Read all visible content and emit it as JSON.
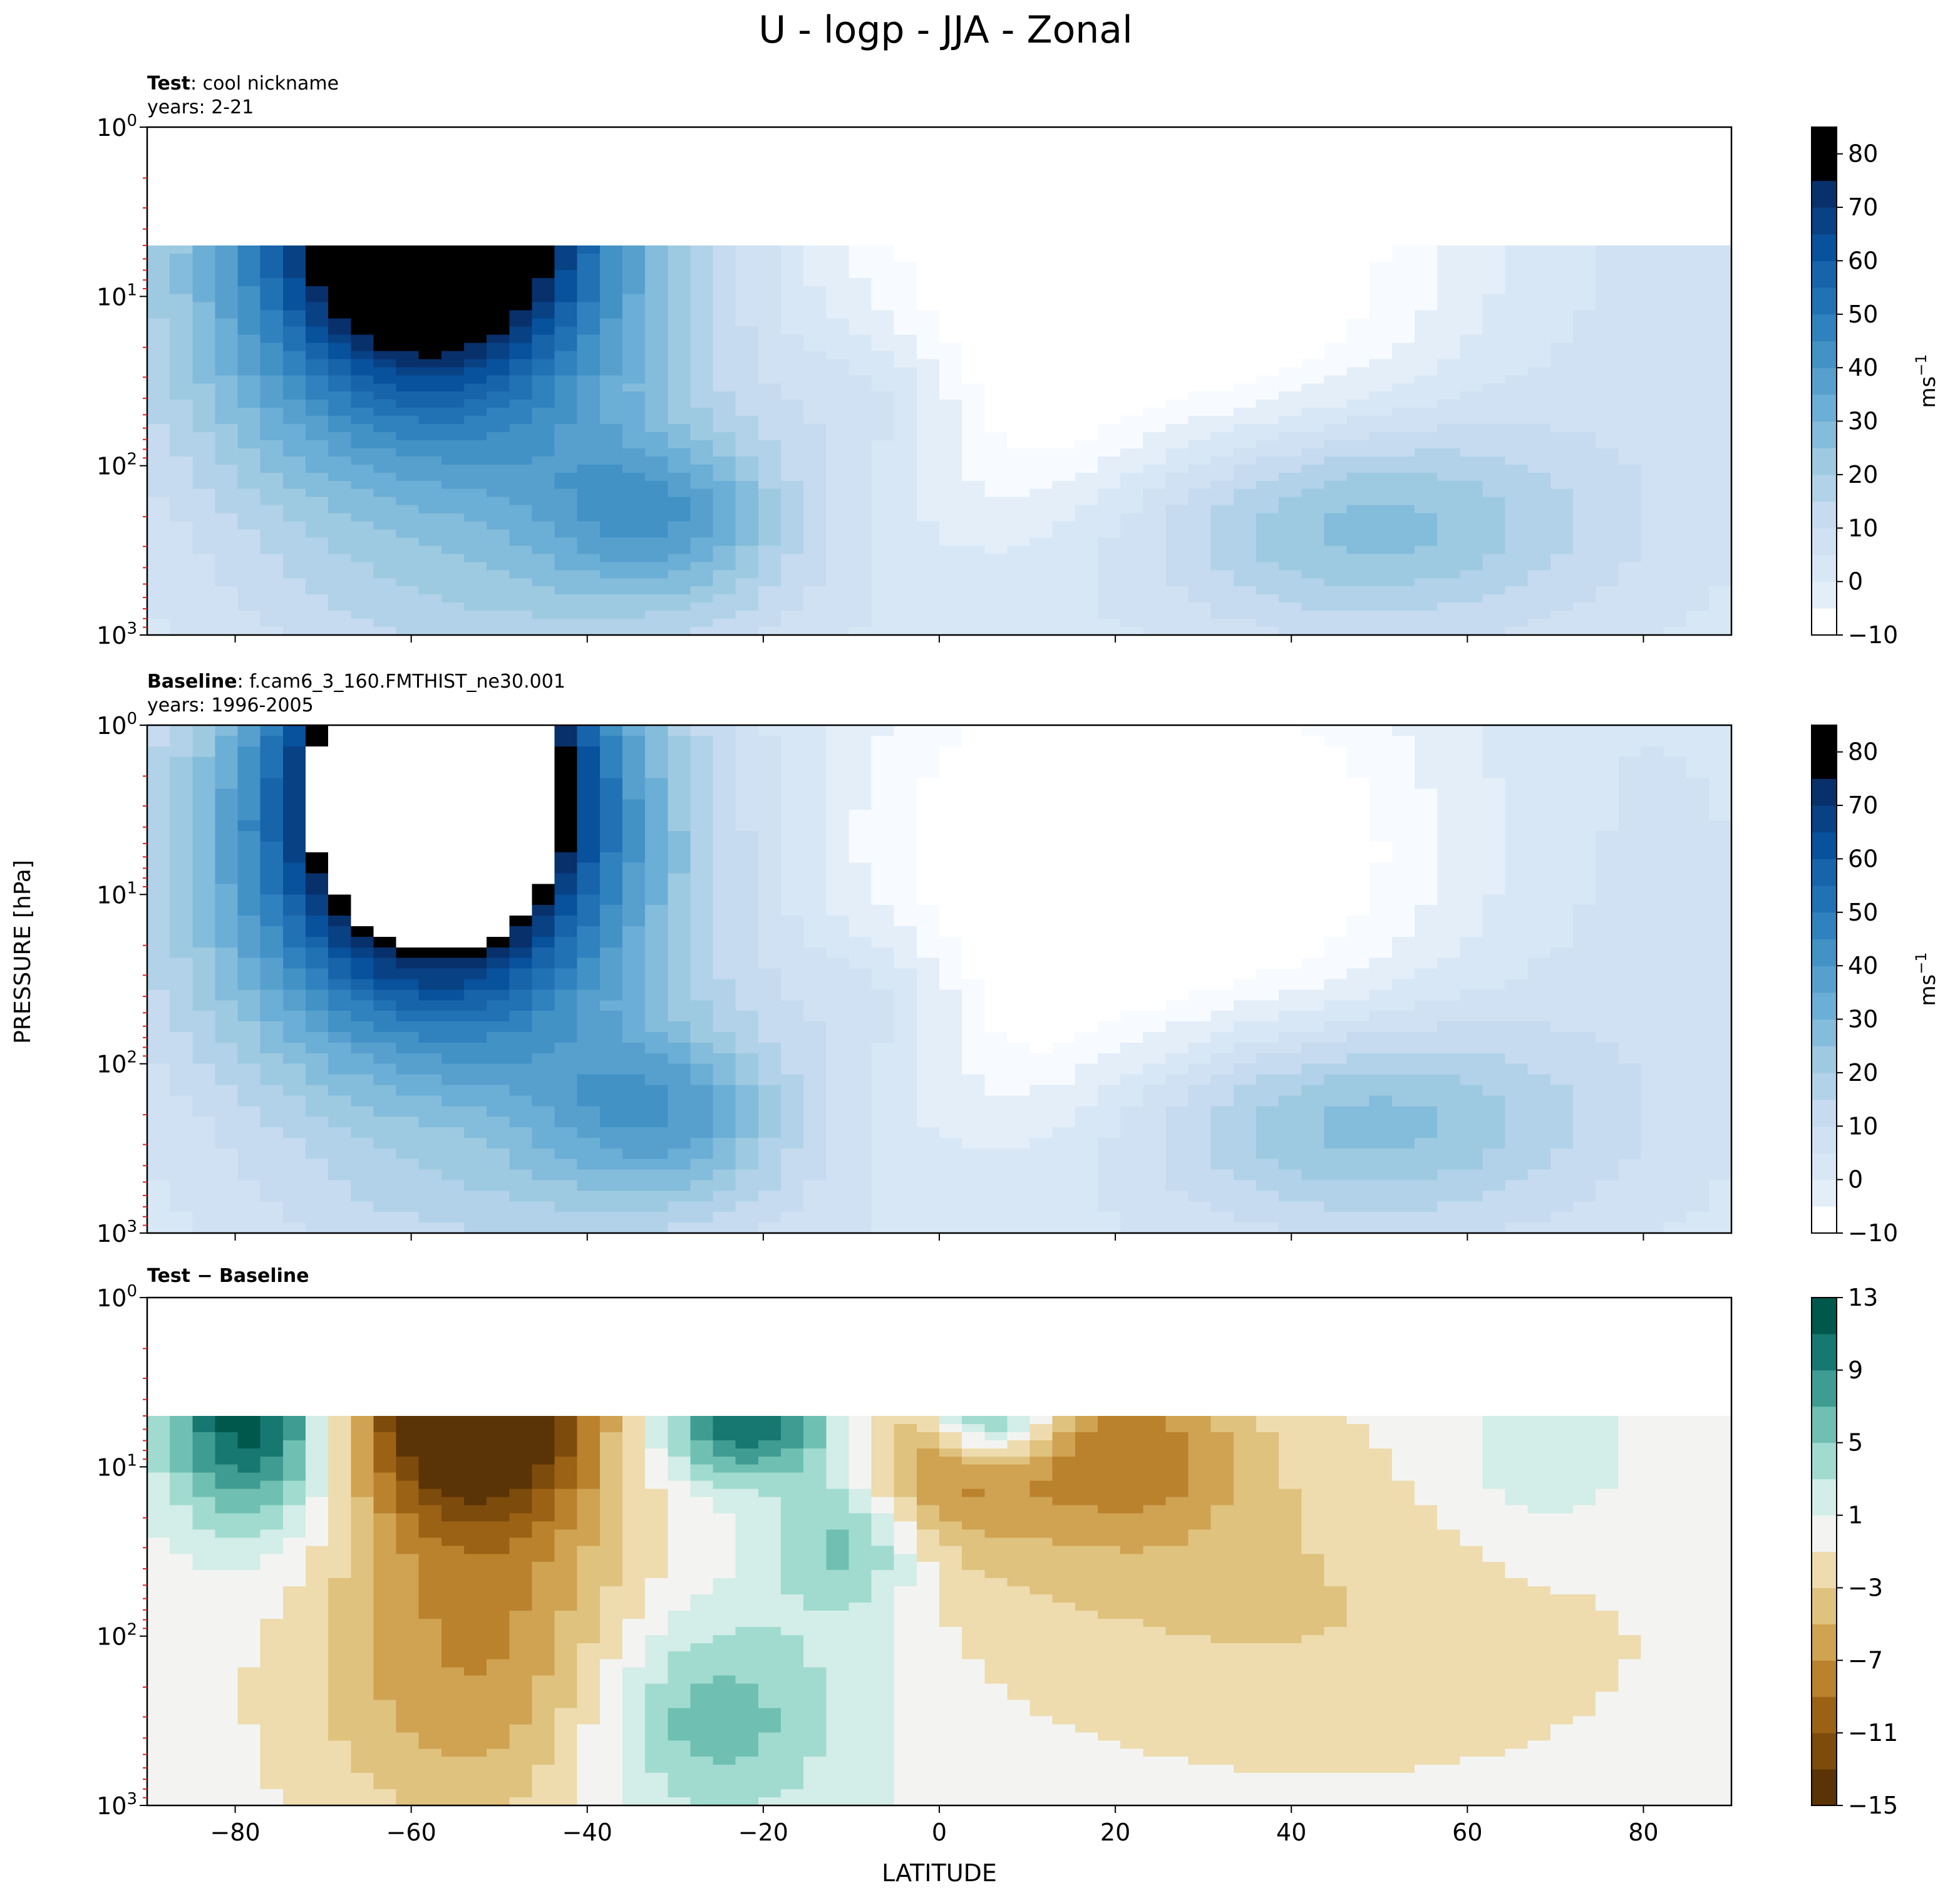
{
  "figure": {
    "title": "U - logp - JJA - Zonal",
    "ylabel": "PRESSURE [hPa]",
    "xlabel": "LATITUDE"
  },
  "chart_data": [
    {
      "type": "contour",
      "panel": "test",
      "label_bold": "Test",
      "label_rest": ": cool nickname",
      "years": "years: 2-21",
      "x": {
        "min": -90,
        "max": 90,
        "ticks": [
          -80,
          -60,
          -40,
          -20,
          0,
          20,
          40,
          60,
          80
        ]
      },
      "y": {
        "scale": "log",
        "min": 1,
        "max": 1000,
        "ticks": [
          "10",
          "10",
          "10",
          "10"
        ],
        "tick_exponents": [
          "0",
          "1",
          "2",
          "3"
        ],
        "inverted": true
      },
      "data_top_hpa": 5,
      "colorbar": {
        "levels": [
          -10,
          -5,
          0,
          5,
          10,
          15,
          20,
          25,
          30,
          35,
          40,
          45,
          50,
          55,
          60,
          65,
          70,
          75,
          80,
          85
        ],
        "tick_labels": [
          "80",
          "70",
          "60",
          "50",
          "40",
          "30",
          "20",
          "10",
          "0",
          "−10"
        ],
        "units": "ms",
        "units_exp": "−1"
      },
      "features": [
        {
          "name": "southern polar night jet",
          "lat": -58,
          "hpa": 5,
          "max": 75
        },
        {
          "name": "southern subtropical jet",
          "lat": -30,
          "hpa": 200,
          "max": 40
        },
        {
          "name": "northern subtropical jet",
          "lat": 47,
          "hpa": 200,
          "max": 25
        },
        {
          "name": "tropical upper westerly",
          "lat": -7,
          "hpa": 40,
          "max": 15
        }
      ]
    },
    {
      "type": "contour",
      "panel": "baseline",
      "label_bold": "Baseline",
      "label_rest": ": f.cam6_3_160.FMTHIST_ne30.001",
      "years": "years: 1996-2005",
      "x": {
        "min": -90,
        "max": 90,
        "ticks": [
          -80,
          -60,
          -40,
          -20,
          0,
          20,
          40,
          60,
          80
        ]
      },
      "y": {
        "scale": "log",
        "min": 1,
        "max": 1000,
        "ticks": [
          "10",
          "10",
          "10",
          "10"
        ],
        "tick_exponents": [
          "0",
          "1",
          "2",
          "3"
        ],
        "inverted": true
      },
      "data_top_hpa": 1,
      "colorbar": {
        "levels": [
          -10,
          -5,
          0,
          5,
          10,
          15,
          20,
          25,
          30,
          35,
          40,
          45,
          50,
          55,
          60,
          65,
          70,
          75,
          80,
          85
        ],
        "tick_labels": [
          "80",
          "70",
          "60",
          "50",
          "40",
          "30",
          "20",
          "10",
          "0",
          "−10"
        ],
        "units": "ms",
        "units_exp": "−1"
      },
      "features": [
        {
          "name": "southern polar night jet",
          "lat": -57,
          "hpa": 3,
          "max": 90
        },
        {
          "name": "southern subtropical jet",
          "lat": -31,
          "hpa": 200,
          "max": 40
        },
        {
          "name": "northern subtropical jet",
          "lat": 47,
          "hpa": 200,
          "max": 25
        },
        {
          "name": "tropical upper westerly",
          "lat": -3,
          "hpa": 40,
          "max": 15
        }
      ]
    },
    {
      "type": "contour",
      "panel": "difference",
      "label_bold": "Test − Baseline",
      "x": {
        "min": -90,
        "max": 90,
        "ticks": [
          -80,
          -60,
          -40,
          -20,
          0,
          20,
          40,
          60,
          80
        ]
      },
      "y": {
        "scale": "log",
        "min": 1,
        "max": 1000,
        "ticks": [
          "10",
          "10",
          "10",
          "10"
        ],
        "tick_exponents": [
          "0",
          "1",
          "2",
          "3"
        ],
        "inverted": true
      },
      "data_top_hpa": 5,
      "colorbar": {
        "levels": [
          -15,
          -13,
          -11,
          -9,
          -7,
          -5,
          -3,
          -1,
          1,
          3,
          5,
          7,
          9,
          11,
          13
        ],
        "tick_labels": [
          "13",
          "9",
          "5",
          "1",
          "−3",
          "−7",
          "−11",
          "−15"
        ]
      },
      "features": [
        {
          "name": "positive high-latitude south",
          "lat": -78,
          "hpa": 5,
          "value": 11
        },
        {
          "name": "negative polar jet region",
          "lat": -55,
          "hpa": 5,
          "value": -15
        },
        {
          "name": "positive southern tropics",
          "lat": -22,
          "hpa": 5,
          "value": 9
        },
        {
          "name": "positive equatorial",
          "lat": 6,
          "hpa": 5,
          "value": 9
        },
        {
          "name": "negative northern tropics",
          "lat": 0,
          "hpa": 10,
          "value": -7
        },
        {
          "name": "negative northern midlatitude",
          "lat": 45,
          "hpa": 100,
          "value": -3
        }
      ]
    }
  ],
  "colors": {
    "blues": [
      "#ffffff",
      "#f7fbff",
      "#e3eef9",
      "#d8e7f5",
      "#cfe1f2",
      "#c6dbef",
      "#b1d2e8",
      "#9ecae1",
      "#84bcdb",
      "#6baed6",
      "#57a0ce",
      "#4292c6",
      "#3082be",
      "#2171b5",
      "#1764ab",
      "#08519c",
      "#084184",
      "#08306b"
    ],
    "brbg_neg": [
      "#5a3406",
      "#7d4b0c",
      "#9b6215",
      "#bb822d",
      "#cfa352",
      "#dfc27d",
      "#eedcaf",
      "#f5ebd2"
    ],
    "brbg_neutral": "#f3f4f2",
    "brbg_pos": [
      "#d3ede8",
      "#a1dbd0",
      "#6fc0b2",
      "#3f9c92",
      "#167870",
      "#00584d",
      "#003c30"
    ]
  }
}
